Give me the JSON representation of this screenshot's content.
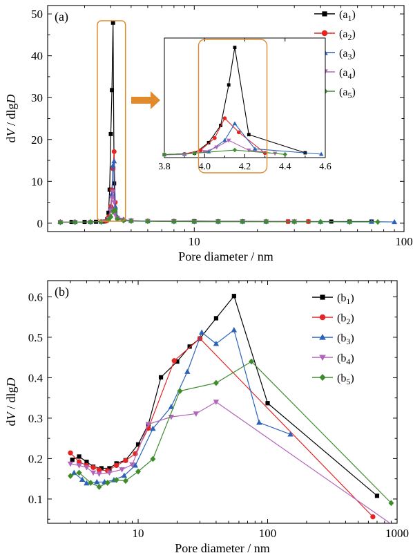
{
  "chart_data": [
    {
      "type": "line",
      "panel": "(a)",
      "xlabel": "Pore diameter / nm",
      "ylabel": "dV / dlgD",
      "xscale": "log",
      "xlim": [
        2,
        100
      ],
      "ylim": [
        -2,
        52
      ],
      "xticks": [
        10,
        100
      ],
      "yticks": [
        0,
        10,
        20,
        30,
        40,
        50
      ],
      "legend_position": "top-right",
      "highlight_color": "#e08a2c",
      "series": [
        {
          "name": "(a1)",
          "color": "#000000",
          "marker": "square",
          "x": [
            2.3,
            2.6,
            3.0,
            3.4,
            3.7,
            3.85,
            3.9,
            3.95,
            4.0,
            4.05,
            4.1,
            4.15,
            4.2,
            4.3,
            4.6,
            5,
            6,
            8,
            10,
            13,
            17,
            22,
            28,
            35,
            45,
            55,
            70
          ],
          "y": [
            0.3,
            0.3,
            0.3,
            0.35,
            0.4,
            1.0,
            2.5,
            8.0,
            21.3,
            31.8,
            47.9,
            9.5,
            3.0,
            1.2,
            0.8,
            0.6,
            0.5,
            0.5,
            0.5,
            0.45,
            0.45,
            0.4,
            0.4,
            0.4,
            0.4,
            0.4,
            0.4
          ]
        },
        {
          "name": "(a2)",
          "color": "#e32525",
          "marker": "circle",
          "x": [
            2.3,
            2.7,
            3.2,
            3.6,
            3.8,
            3.9,
            4.0,
            4.05,
            4.1,
            4.15,
            4.2,
            4.3,
            4.6,
            5,
            6,
            8,
            10,
            13,
            17,
            22,
            28,
            35
          ],
          "y": [
            0.3,
            0.3,
            0.3,
            0.35,
            0.5,
            1.5,
            4.0,
            8.0,
            13.0,
            17.1,
            5.0,
            1.3,
            0.8,
            0.6,
            0.5,
            0.45,
            0.4,
            0.4,
            0.4,
            0.4,
            0.4,
            0.4
          ]
        },
        {
          "name": "(a3)",
          "color": "#2a62b8",
          "marker": "triangle-up",
          "x": [
            2.3,
            2.7,
            3.2,
            3.6,
            3.9,
            4.0,
            4.05,
            4.1,
            4.15,
            4.2,
            4.3,
            4.6,
            5,
            6,
            8,
            10,
            13,
            17,
            22,
            30,
            40,
            55,
            70,
            90
          ],
          "y": [
            0.3,
            0.3,
            0.3,
            0.35,
            1.0,
            3.5,
            7.0,
            13.8,
            14.8,
            4.0,
            1.5,
            0.9,
            0.6,
            0.5,
            0.45,
            0.4,
            0.4,
            0.4,
            0.4,
            0.4,
            0.35,
            0.35,
            0.35,
            0.3
          ]
        },
        {
          "name": "(a4)",
          "color": "#b065b8",
          "marker": "triangle-down",
          "x": [
            2.3,
            2.7,
            3.2,
            3.6,
            3.9,
            4.0,
            4.05,
            4.1,
            4.15,
            4.2,
            4.3,
            4.6,
            5,
            6,
            8,
            10,
            13,
            17,
            22,
            30
          ],
          "y": [
            0.3,
            0.3,
            0.3,
            0.35,
            1.0,
            3.0,
            6.0,
            7.5,
            5.0,
            2.0,
            1.2,
            0.8,
            0.6,
            0.5,
            0.45,
            0.4,
            0.4,
            0.4,
            0.4,
            0.4
          ]
        },
        {
          "name": "(a5)",
          "color": "#3f8c2f",
          "marker": "diamond",
          "x": [
            2.3,
            2.7,
            3.2,
            3.6,
            3.9,
            4.0,
            4.1,
            4.2,
            4.3,
            4.6,
            5,
            6,
            8,
            10,
            13,
            17,
            22,
            30,
            40,
            55,
            75
          ],
          "y": [
            0.2,
            0.25,
            0.3,
            0.3,
            0.8,
            1.5,
            2.8,
            3.2,
            1.0,
            0.6,
            0.5,
            0.45,
            0.4,
            0.4,
            0.4,
            0.4,
            0.4,
            0.35,
            0.35,
            0.3,
            0.3
          ]
        }
      ],
      "inset": {
        "xlim": [
          3.8,
          4.6
        ],
        "xticks": [
          3.8,
          4.0,
          4.2,
          4.4,
          4.6
        ],
        "series": [
          {
            "name": "(a1)",
            "x": [
              3.8,
              3.95,
              4.02,
              4.08,
              4.12,
              4.15,
              4.22,
              4.5
            ],
            "y": [
              1.3,
              1.9,
              6.5,
              14.0,
              31.6,
              47.9,
              10.0,
              2.1
            ]
          },
          {
            "name": "(a2)",
            "x": [
              3.8,
              3.9,
              3.98,
              4.05,
              4.1,
              4.17,
              4.3
            ],
            "y": [
              1.3,
              1.6,
              3.2,
              8.5,
              17.1,
              11.0,
              2.0
            ]
          },
          {
            "name": "(a3)",
            "x": [
              3.8,
              3.9,
              4.02,
              4.1,
              4.15,
              4.25,
              4.58
            ],
            "y": [
              1.3,
              1.5,
              2.6,
              7.5,
              14.8,
              3.8,
              1.5
            ]
          },
          {
            "name": "(a4)",
            "x": [
              3.8,
              3.9,
              4.0,
              4.06,
              4.12,
              4.22,
              4.35
            ],
            "y": [
              1.2,
              1.4,
              2.5,
              4.5,
              7.5,
              3.2,
              1.8
            ]
          },
          {
            "name": "(a5)",
            "x": [
              3.8,
              3.95,
              4.15,
              4.4
            ],
            "y": [
              1.3,
              1.9,
              3.3,
              1.4
            ]
          }
        ]
      }
    },
    {
      "type": "line",
      "panel": "(b)",
      "xlabel": "Pore diameter / nm",
      "ylabel": "dV / dlgD",
      "xscale": "log",
      "xlim": [
        2,
        1000
      ],
      "ylim": [
        0.04,
        0.64
      ],
      "xticks": [
        10,
        100,
        1000
      ],
      "yticks": [
        0.1,
        0.2,
        0.3,
        0.4,
        0.5,
        0.6
      ],
      "legend_position": "top-right",
      "series": [
        {
          "name": "(b1)",
          "color": "#000000",
          "marker": "square",
          "x": [
            3.1,
            3.5,
            4.0,
            4.5,
            5.2,
            6.0,
            6.8,
            8.0,
            10.0,
            12.0,
            15.0,
            20.0,
            25.0,
            30.0,
            40.0,
            55.0,
            100.0,
            700.0
          ],
          "y": [
            0.197,
            0.205,
            0.192,
            0.18,
            0.176,
            0.176,
            0.188,
            0.196,
            0.235,
            0.285,
            0.401,
            0.44,
            0.477,
            0.497,
            0.547,
            0.602,
            0.337,
            0.108
          ]
        },
        {
          "name": "(b2)",
          "color": "#e32525",
          "marker": "circle",
          "x": [
            3.0,
            3.5,
            4.0,
            4.5,
            5.0,
            5.8,
            6.8,
            8.0,
            9.5,
            12.0,
            19.0,
            30.0,
            650.0
          ],
          "y": [
            0.214,
            0.192,
            0.183,
            0.178,
            0.172,
            0.17,
            0.183,
            0.195,
            0.212,
            0.275,
            0.442,
            0.497,
            0.056
          ]
        },
        {
          "name": "(b3)",
          "color": "#2a62b8",
          "marker": "triangle-up",
          "x": [
            3.2,
            3.7,
            4.0,
            4.8,
            5.5,
            6.5,
            7.8,
            9.5,
            13.0,
            18.0,
            24.0,
            31.0,
            40.0,
            55.0,
            86.0,
            150.0
          ],
          "y": [
            0.165,
            0.148,
            0.139,
            0.142,
            0.142,
            0.147,
            0.158,
            0.183,
            0.274,
            0.328,
            0.415,
            0.512,
            0.484,
            0.518,
            0.289,
            0.26
          ]
        },
        {
          "name": "(b4)",
          "color": "#b065b8",
          "marker": "triangle-down",
          "x": [
            3.0,
            3.5,
            4.0,
            4.5,
            5.0,
            6.0,
            7.5,
            9.0,
            12.0,
            18.0,
            28.0,
            40.0,
            950.0
          ],
          "y": [
            0.187,
            0.183,
            0.178,
            0.165,
            0.162,
            0.165,
            0.173,
            0.185,
            0.285,
            0.303,
            0.311,
            0.34,
            0.033
          ]
        },
        {
          "name": "(b5)",
          "color": "#3f8c2f",
          "marker": "diamond",
          "x": [
            3.0,
            3.5,
            4.3,
            5.0,
            5.8,
            6.8,
            8.0,
            10.0,
            13.0,
            21.0,
            40.0,
            75.0,
            900.0
          ],
          "y": [
            0.157,
            0.165,
            0.14,
            0.13,
            0.14,
            0.147,
            0.145,
            0.168,
            0.199,
            0.367,
            0.387,
            0.44,
            0.09
          ]
        }
      ]
    }
  ]
}
